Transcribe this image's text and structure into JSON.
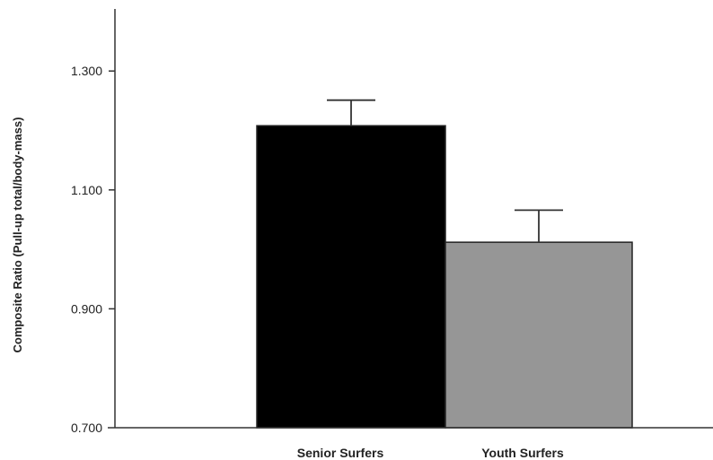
{
  "chart_data": {
    "type": "bar",
    "title": "",
    "xlabel": "",
    "ylabel": "Composite Ratio (Pull-up total/body-mass)",
    "categories": [
      "Senior Surfers",
      "Youth Surfers"
    ],
    "series": [
      {
        "values": [
          1.208,
          1.012
        ],
        "error_plus": [
          0.043,
          0.054
        ],
        "colors": [
          "#000000",
          "#969696"
        ]
      }
    ],
    "ylim": [
      0.7,
      1.4
    ],
    "yticks": [
      0.7,
      0.9,
      1.1,
      1.3
    ],
    "ytick_labels": [
      "0.700",
      "0.900",
      "1.100",
      "1.300"
    ],
    "grid": false,
    "legend": "none"
  }
}
